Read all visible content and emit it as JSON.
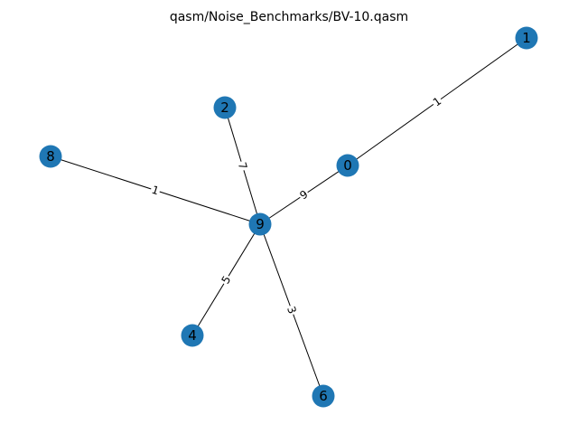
{
  "title": "qasm/Noise_Benchmarks/BV-10.qasm",
  "node_color": "#1f77b4",
  "nodes": [
    {
      "id": "0",
      "label": "0"
    },
    {
      "id": "1",
      "label": "1"
    },
    {
      "id": "2",
      "label": "2"
    },
    {
      "id": "4",
      "label": "4"
    },
    {
      "id": "6",
      "label": "6"
    },
    {
      "id": "8",
      "label": "8"
    },
    {
      "id": "9",
      "label": "9"
    }
  ],
  "edges": [
    {
      "source": "0",
      "target": "1",
      "label": "1"
    },
    {
      "source": "9",
      "target": "0",
      "label": "9"
    },
    {
      "source": "2",
      "target": "9",
      "label": "7"
    },
    {
      "source": "8",
      "target": "9",
      "label": "1"
    },
    {
      "source": "9",
      "target": "4",
      "label": "5"
    },
    {
      "source": "9",
      "target": "6",
      "label": "3"
    }
  ]
}
